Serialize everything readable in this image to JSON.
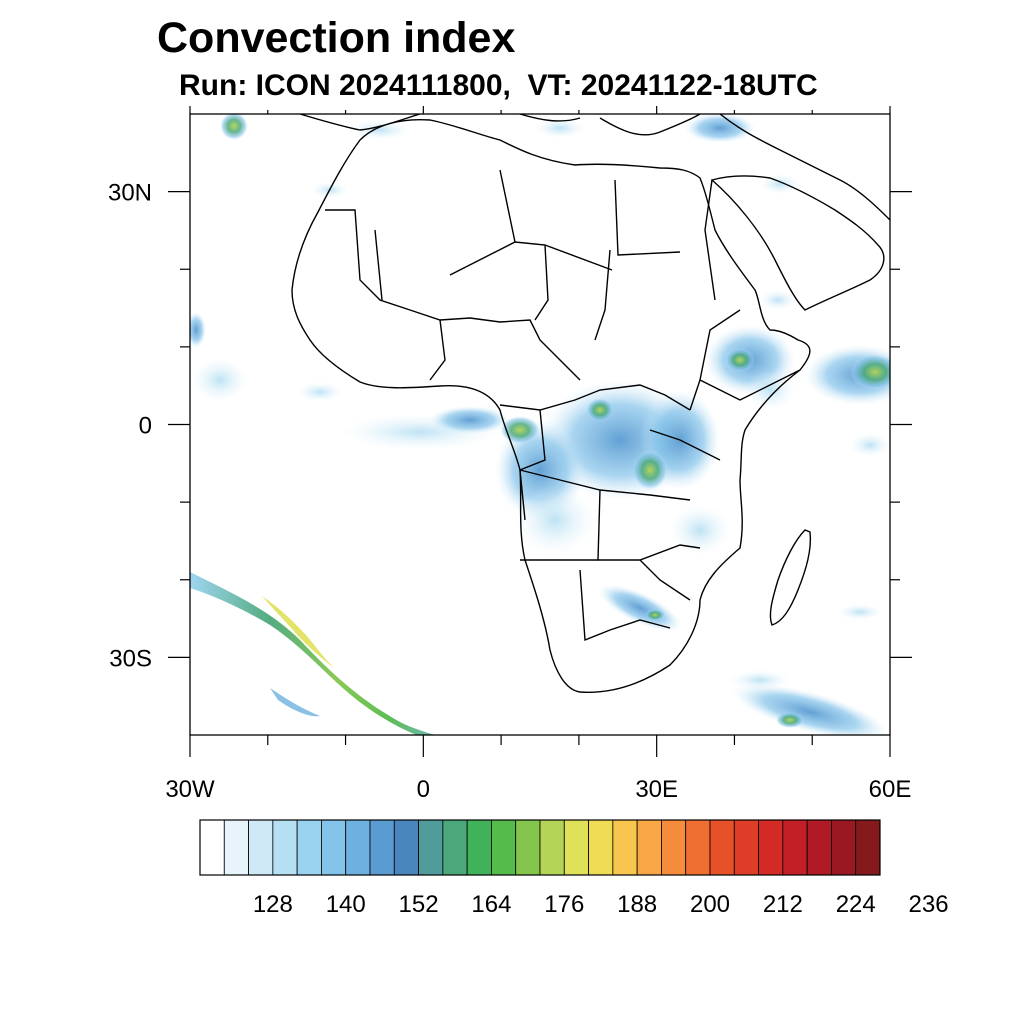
{
  "title": "Convection index",
  "subtitle": "Run: ICON 2024111800,  VT: 20241122-18UTC",
  "map": {
    "lon_ticks": [
      {
        "value": -30,
        "label": "30W"
      },
      {
        "value": 0,
        "label": "0"
      },
      {
        "value": 30,
        "label": "30E"
      },
      {
        "value": 60,
        "label": "60E"
      }
    ],
    "lat_ticks": [
      {
        "value": 30,
        "label": "30N"
      },
      {
        "value": 0,
        "label": "0"
      },
      {
        "value": -30,
        "label": "30S"
      }
    ],
    "minor_lon": [
      -20,
      -10,
      10,
      20,
      40,
      50
    ],
    "minor_lat": [
      20,
      10,
      -10,
      -20
    ],
    "extent": {
      "lon": [
        -30,
        60
      ],
      "lat": [
        -40,
        40
      ]
    }
  },
  "colorbar": {
    "colors": [
      "#ffffff",
      "#e8f4fb",
      "#cfe9f7",
      "#b5dff3",
      "#9ad3f0",
      "#84c3ea",
      "#6eb0df",
      "#5a9bd1",
      "#4a86be",
      "#4f9c9a",
      "#4aa87a",
      "#40b35a",
      "#55bb4a",
      "#84c64d",
      "#b3d456",
      "#dfe159",
      "#f0db55",
      "#f8c64f",
      "#f9a845",
      "#f58c3b",
      "#ef6e31",
      "#e6512a",
      "#de3d27",
      "#d42a26",
      "#c21f27",
      "#b01a25",
      "#9a1821",
      "#851a1c"
    ],
    "tick_labels": [
      "128",
      "140",
      "152",
      "164",
      "176",
      "188",
      "200",
      "212",
      "224",
      "236"
    ]
  }
}
